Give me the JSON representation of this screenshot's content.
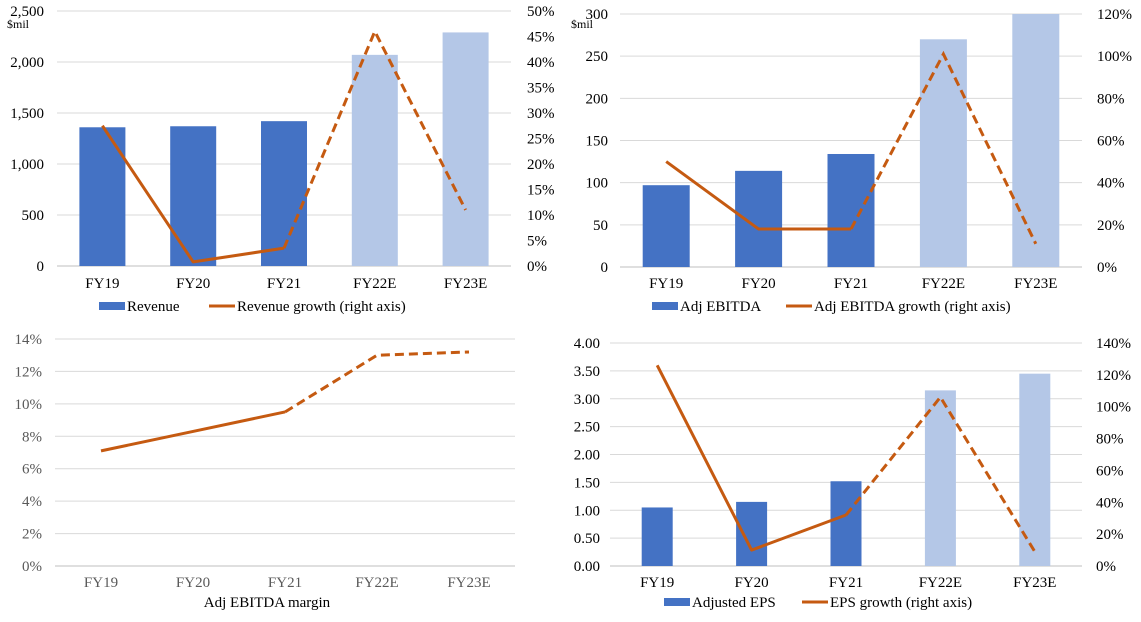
{
  "colors": {
    "bar_actual": "#4472c4",
    "bar_estimate": "#b4c7e7",
    "line": "#c55a11"
  },
  "chart_data": [
    {
      "type": "bar",
      "categories": [
        "FY19",
        "FY20",
        "FY21",
        "FY22E",
        "FY23E"
      ],
      "series": [
        {
          "name": "Revenue",
          "kind": "bar",
          "axis": "left",
          "values": [
            1360,
            1370,
            1420,
            2070,
            2290
          ],
          "estimate_from_index": 3
        },
        {
          "name": "Revenue growth (right axis)",
          "kind": "line",
          "axis": "right",
          "values": [
            27.5,
            0.8,
            3.5,
            46,
            11
          ],
          "dashed_from_index": 2
        }
      ],
      "y_left": {
        "min": 0,
        "max": 2500,
        "step": 500,
        "unit": "$mil",
        "ticks": [
          "0",
          "500",
          "1,000",
          "1,500",
          "2,000",
          "2,500"
        ]
      },
      "y_right": {
        "min": 0,
        "max": 50,
        "step": 5,
        "ticks": [
          "0%",
          "5%",
          "10%",
          "15%",
          "20%",
          "25%",
          "30%",
          "35%",
          "40%",
          "45%",
          "50%"
        ]
      },
      "grid": true,
      "legend_position": "bottom",
      "title": ""
    },
    {
      "type": "bar",
      "categories": [
        "FY19",
        "FY20",
        "FY21",
        "FY22E",
        "FY23E"
      ],
      "series": [
        {
          "name": "Adj EBITDA",
          "kind": "bar",
          "axis": "left",
          "values": [
            97,
            114,
            134,
            270,
            300
          ],
          "estimate_from_index": 3
        },
        {
          "name": "Adj EBITDA growth (right axis)",
          "kind": "line",
          "axis": "right",
          "values": [
            50,
            18,
            18,
            101,
            11
          ],
          "dashed_from_index": 2
        }
      ],
      "y_left": {
        "min": 0,
        "max": 300,
        "step": 50,
        "unit": "$mil",
        "ticks": [
          "0",
          "50",
          "100",
          "150",
          "200",
          "250",
          "300"
        ]
      },
      "y_right": {
        "min": 0,
        "max": 120,
        "step": 20,
        "ticks": [
          "0%",
          "20%",
          "40%",
          "60%",
          "80%",
          "100%",
          "120%"
        ]
      },
      "grid": true,
      "legend_position": "bottom",
      "title": ""
    },
    {
      "type": "line",
      "categories": [
        "FY19",
        "FY20",
        "FY21",
        "FY22E",
        "FY23E"
      ],
      "series": [
        {
          "name": "Adj EBITDA margin",
          "kind": "line",
          "axis": "left",
          "values": [
            7.1,
            8.3,
            9.5,
            13.0,
            13.2
          ],
          "dashed_from_index": 2
        }
      ],
      "y_left": {
        "min": 0,
        "max": 14,
        "step": 2,
        "ticks": [
          "0%",
          "2%",
          "4%",
          "6%",
          "8%",
          "10%",
          "12%",
          "14%"
        ]
      },
      "grid": true,
      "legend_position": "bottom",
      "title": ""
    },
    {
      "type": "bar",
      "categories": [
        "FY19",
        "FY20",
        "FY21",
        "FY22E",
        "FY23E"
      ],
      "series": [
        {
          "name": "Adjusted EPS",
          "kind": "bar",
          "axis": "left",
          "values": [
            1.05,
            1.15,
            1.52,
            3.15,
            3.45
          ],
          "estimate_from_index": 3
        },
        {
          "name": "EPS growth (right axis)",
          "kind": "line",
          "axis": "right",
          "values": [
            126,
            10,
            32,
            106,
            9
          ],
          "dashed_from_index": 2
        }
      ],
      "y_left": {
        "min": 0,
        "max": 4,
        "step": 0.5,
        "ticks": [
          "0.00",
          "0.50",
          "1.00",
          "1.50",
          "2.00",
          "2.50",
          "3.00",
          "3.50",
          "4.00"
        ]
      },
      "y_right": {
        "min": 0,
        "max": 140,
        "step": 20,
        "ticks": [
          "0%",
          "20%",
          "40%",
          "60%",
          "80%",
          "100%",
          "120%",
          "140%"
        ]
      },
      "grid": true,
      "legend_position": "bottom",
      "title": ""
    }
  ]
}
